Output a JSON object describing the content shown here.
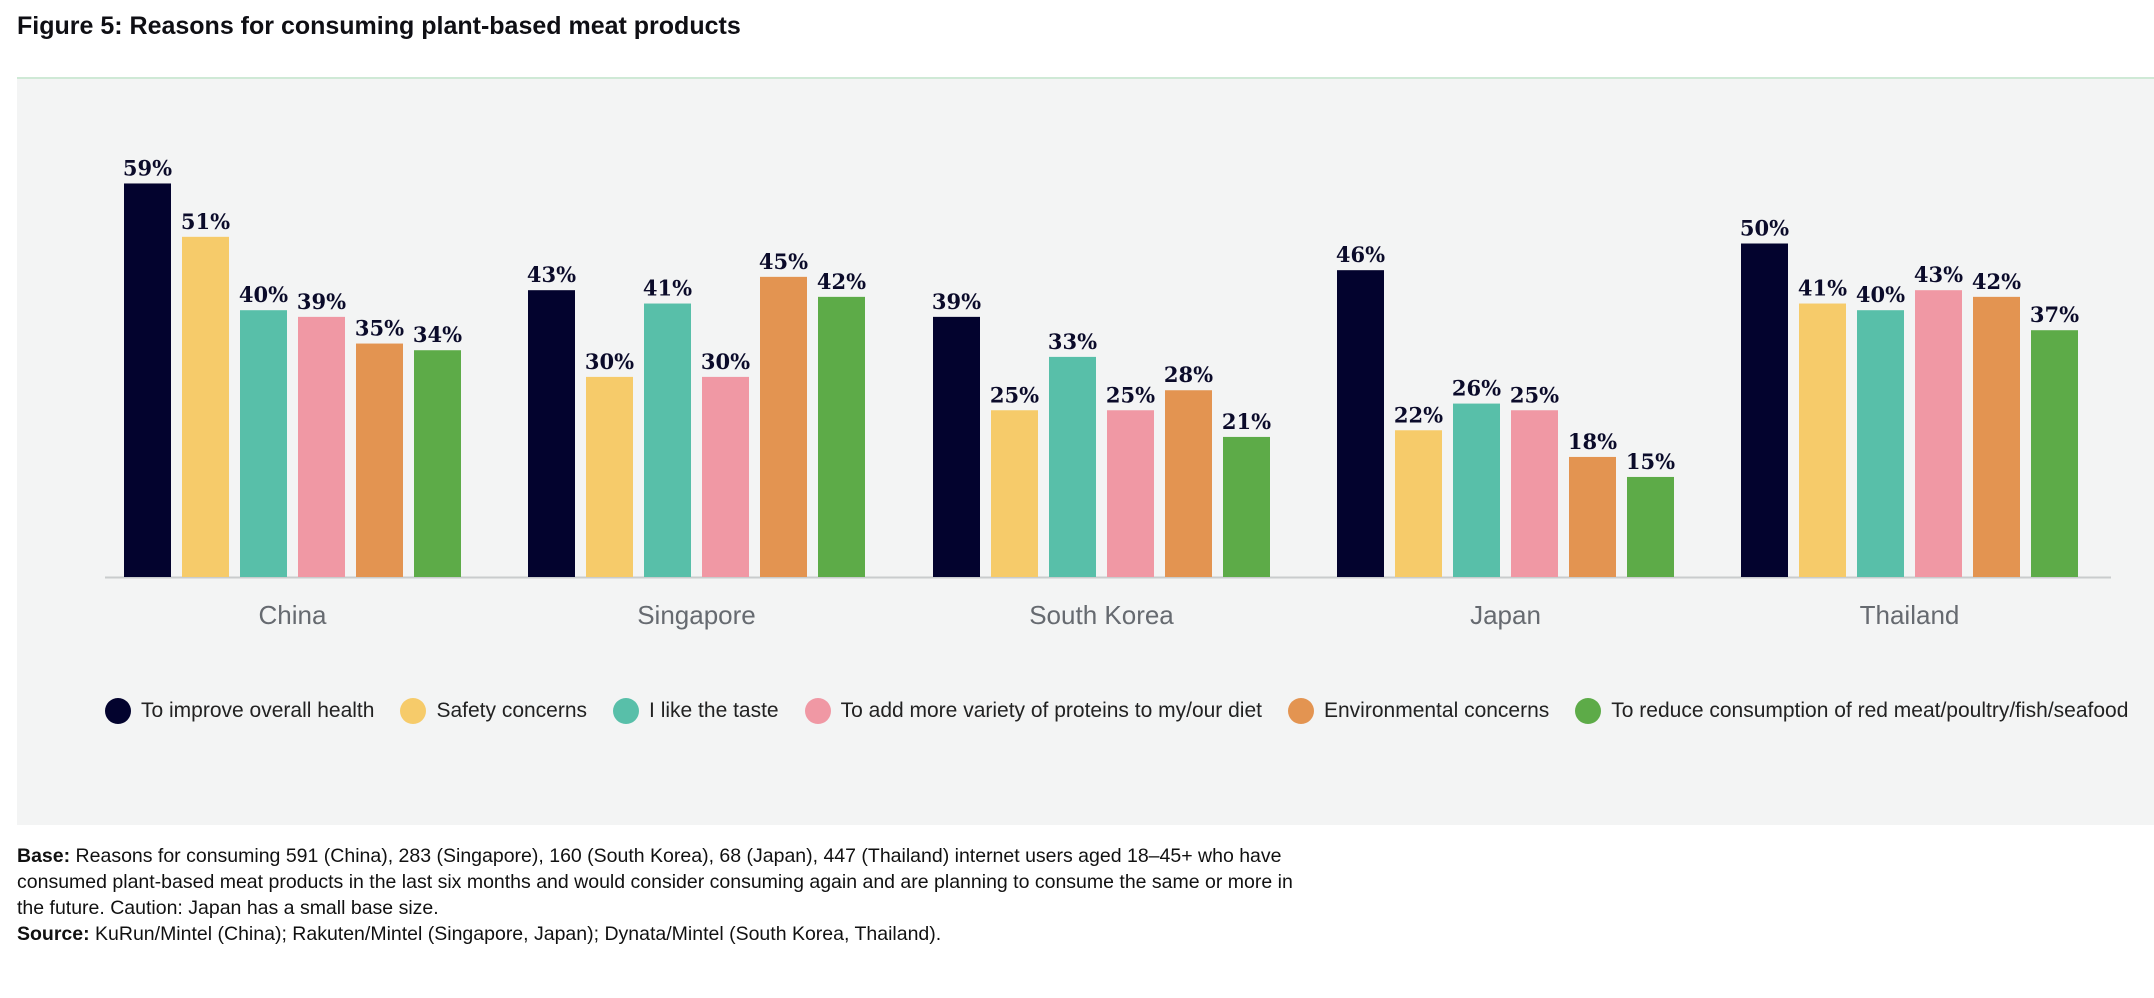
{
  "figure_title": "Figure 5: Reasons for consuming plant-based meat products",
  "chart_data": {
    "type": "bar",
    "title": "",
    "xlabel": "",
    "ylabel": "",
    "ylim": [
      0,
      70
    ],
    "grid": false,
    "legend_position": "bottom",
    "categories": [
      "China",
      "Singapore",
      "South Korea",
      "Japan",
      "Thailand"
    ],
    "series": [
      {
        "name": "To improve overall health",
        "color": "#03032e",
        "values": [
          59,
          43,
          39,
          46,
          50
        ]
      },
      {
        "name": "Safety concerns",
        "color": "#f6cb6a",
        "values": [
          51,
          30,
          25,
          22,
          41
        ]
      },
      {
        "name": "I like the taste",
        "color": "#58bfa9",
        "values": [
          40,
          41,
          33,
          26,
          40
        ]
      },
      {
        "name": "To add more variety of proteins to my/our diet",
        "color": "#f098a4",
        "values": [
          39,
          30,
          25,
          25,
          43
        ]
      },
      {
        "name": "Environmental concerns",
        "color": "#e39451",
        "values": [
          35,
          45,
          28,
          18,
          42
        ]
      },
      {
        "name": "To reduce consumption of red meat/poultry/fish/seafood",
        "color": "#5dab48",
        "values": [
          34,
          42,
          21,
          15,
          37
        ]
      }
    ],
    "value_suffix": "%"
  },
  "notes": {
    "base_label": "Base:",
    "base_text": " Reasons for consuming 591 (China), 283 (Singapore), 160 (South Korea), 68 (Japan), 447 (Thailand) internet users aged 18–45+ who have consumed plant-based meat products in the last six months and would consider consuming again and are planning to consume the same or more in the future. Caution: Japan has a small base size.",
    "source_label": "Source:",
    "source_text": " KuRun/Mintel (China); Rakuten/Mintel (Singapore, Japan); Dynata/Mintel (South Korea, Thailand)."
  }
}
